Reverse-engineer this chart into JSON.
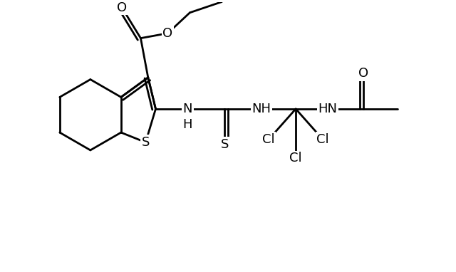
{
  "bg": "#ffffff",
  "lc": "#000000",
  "lw": 2.0,
  "fs": 13,
  "fw": 6.4,
  "fh": 3.82,
  "dpi": 100,
  "xlim": [
    0.0,
    9.0
  ],
  "ylim": [
    0.0,
    5.5
  ]
}
